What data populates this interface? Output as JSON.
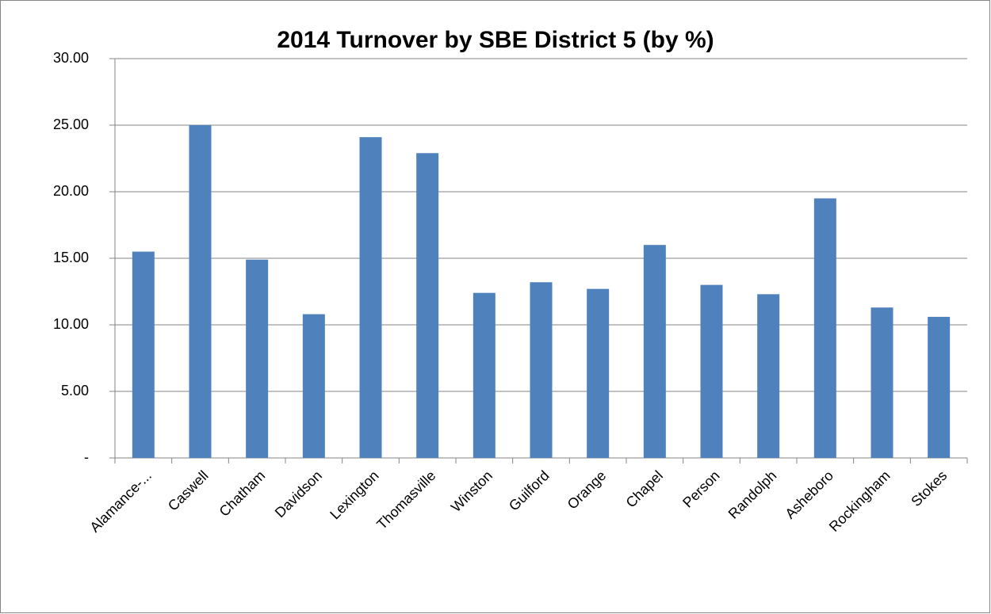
{
  "chart_data": {
    "type": "bar",
    "title": "2014 Turnover by SBE District 5 (by %)",
    "categories": [
      "Alamance-...",
      "Caswell",
      "Chatham",
      "Davidson",
      "Lexington",
      "Thomasville",
      "Winston",
      "Guilford",
      "Orange",
      "Chapel",
      "Person",
      "Randolph",
      "Asheboro",
      "Rockingham",
      "Stokes"
    ],
    "values": [
      15.5,
      25.0,
      14.9,
      10.8,
      24.1,
      22.9,
      12.4,
      13.2,
      12.7,
      16.0,
      13.0,
      12.3,
      19.5,
      11.3,
      10.6
    ],
    "color": "#4f81bd",
    "ylim": [
      0,
      30
    ],
    "yticks": [
      {
        "value": 0,
        "label": "-"
      },
      {
        "value": 5,
        "label": "5.00"
      },
      {
        "value": 10,
        "label": "10.00"
      },
      {
        "value": 15,
        "label": "15.00"
      },
      {
        "value": 20,
        "label": "20.00"
      },
      {
        "value": 25,
        "label": "25.00"
      },
      {
        "value": 30,
        "label": "30.00"
      }
    ],
    "grid": true
  }
}
